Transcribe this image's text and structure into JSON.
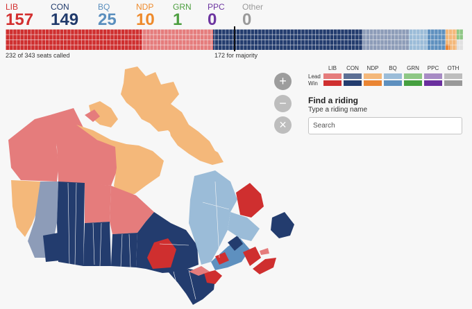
{
  "parties": [
    {
      "abbr": "LIB",
      "seats": "157",
      "color": "#d32f2f"
    },
    {
      "abbr": "CON",
      "seats": "149",
      "color": "#203a6b"
    },
    {
      "abbr": "BQ",
      "seats": "25",
      "color": "#5b8fbe"
    },
    {
      "abbr": "NDP",
      "seats": "10",
      "color": "#ee8a2b"
    },
    {
      "abbr": "GRN",
      "seats": "1",
      "color": "#4c9e3f"
    },
    {
      "abbr": "PPC",
      "seats": "0",
      "color": "#6d35a0"
    },
    {
      "abbr": "Other",
      "seats": "0",
      "color": "#9a9a9a"
    }
  ],
  "seatbar": {
    "called_label": "232 of 343 seats called",
    "majority_label": "172 for majority"
  },
  "legend": {
    "headers": [
      "LIB",
      "CON",
      "NDP",
      "BQ",
      "GRN",
      "PPC",
      "OTH"
    ],
    "rows": [
      "Lead",
      "Win"
    ],
    "lead_colors": [
      "#e57c7c",
      "#5c6f94",
      "#f4b87a",
      "#9bbcd8",
      "#8ec785",
      "#a78bc4",
      "#bdbdbd"
    ],
    "win_colors": [
      "#cf2f2f",
      "#233c6e",
      "#ea8533",
      "#5e90bf",
      "#46a040",
      "#6a2f9e",
      "#999999"
    ]
  },
  "zoom": {
    "in": "+",
    "out": "−",
    "reset": "×"
  },
  "find": {
    "title": "Find a riding",
    "subtitle": "Type a riding name",
    "placeholder": "Search"
  }
}
